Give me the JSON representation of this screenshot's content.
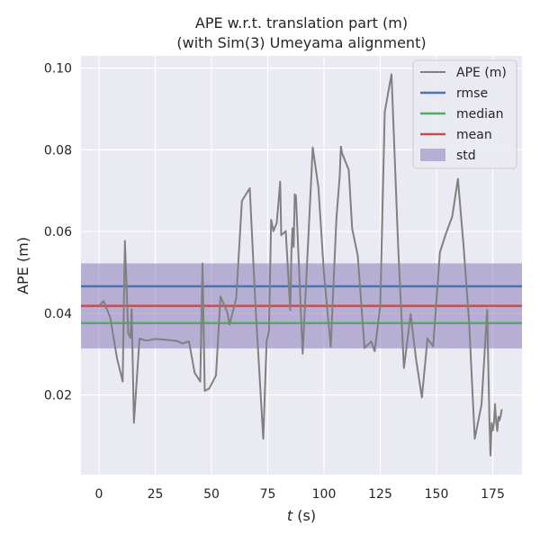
{
  "chart_data": {
    "type": "line",
    "title_line1": "APE w.r.t. translation part (m)",
    "title_line2": "(with Sim(3) Umeyama alignment)",
    "xlabel_var": "t",
    "xlabel_unit": " (s)",
    "ylabel": "APE (m)",
    "xlim": [
      -8,
      188
    ],
    "ylim": [
      0.0005,
      0.103
    ],
    "xticks": [
      0,
      25,
      50,
      75,
      100,
      125,
      150,
      175
    ],
    "xtick_labels": [
      "0",
      "25",
      "50",
      "75",
      "100",
      "125",
      "150",
      "175"
    ],
    "yticks": [
      0.02,
      0.04,
      0.06,
      0.08,
      0.1
    ],
    "ytick_labels": [
      "0.02",
      "0.04",
      "0.06",
      "0.08",
      "0.10"
    ],
    "grid": true,
    "legend_position": "top-right",
    "stats": {
      "rmse": 0.0466,
      "median": 0.0376,
      "mean": 0.0418,
      "std_low": 0.0314,
      "std_high": 0.0522
    },
    "legend": [
      {
        "label": "APE (m)",
        "kind": "line",
        "color": "#808080"
      },
      {
        "label": "rmse",
        "kind": "line",
        "color": "#4c72b0"
      },
      {
        "label": "median",
        "kind": "line",
        "color": "#55a868"
      },
      {
        "label": "mean",
        "kind": "line",
        "color": "#c44e52"
      },
      {
        "label": "std",
        "kind": "patch",
        "color": "#8172b3"
      }
    ],
    "series": [
      {
        "name": "APE (m)",
        "color": "#808080",
        "x": [
          0,
          2,
          5,
          8,
          10.5,
          11.5,
          13,
          14,
          14.5,
          15.5,
          18,
          21,
          25,
          30,
          35,
          37,
          40,
          42.5,
          45,
          46,
          47,
          49,
          52,
          54,
          57,
          58,
          61,
          63.5,
          67,
          69.5,
          73,
          74.5,
          75.5,
          76.5,
          77.5,
          79,
          80.5,
          81,
          83,
          85,
          85.5,
          86,
          86.5,
          87,
          87.5,
          90.5,
          95,
          97.5,
          100,
          103,
          105.5,
          107,
          107.5,
          108,
          111,
          112.5,
          115,
          118,
          121,
          122.5,
          125,
          127,
          130,
          133,
          135.5,
          138.5,
          141,
          143.5,
          146,
          148.5,
          151.5,
          154,
          157,
          159.5,
          162,
          164.5,
          167,
          170,
          172.5,
          173.5,
          174,
          174.5,
          175,
          175.5,
          176,
          176.5,
          177,
          177.5,
          178,
          178.5,
          179
        ],
        "values": [
          0.0418,
          0.043,
          0.039,
          0.029,
          0.0233,
          0.0577,
          0.035,
          0.034,
          0.041,
          0.0132,
          0.0338,
          0.0333,
          0.0337,
          0.0335,
          0.0332,
          0.0326,
          0.0331,
          0.0254,
          0.0233,
          0.0522,
          0.021,
          0.0216,
          0.0248,
          0.0441,
          0.0403,
          0.0372,
          0.0437,
          0.0675,
          0.0706,
          0.0421,
          0.0093,
          0.0332,
          0.0356,
          0.0629,
          0.0601,
          0.0621,
          0.0722,
          0.0591,
          0.0601,
          0.0408,
          0.0552,
          0.0608,
          0.0562,
          0.0691,
          0.0688,
          0.0301,
          0.0806,
          0.0708,
          0.0496,
          0.0318,
          0.0632,
          0.0737,
          0.0808,
          0.0792,
          0.0751,
          0.0607,
          0.0541,
          0.0315,
          0.0331,
          0.0307,
          0.0418,
          0.0893,
          0.0985,
          0.0558,
          0.0266,
          0.0398,
          0.0284,
          0.0194,
          0.0338,
          0.0319,
          0.0549,
          0.0592,
          0.0637,
          0.0729,
          0.0567,
          0.0375,
          0.0093,
          0.0176,
          0.0408,
          0.0138,
          0.0052,
          0.0131,
          0.0113,
          0.0131,
          0.0178,
          0.0135,
          0.0112,
          0.0147,
          0.0138,
          0.0149,
          0.0165
        ]
      }
    ]
  }
}
